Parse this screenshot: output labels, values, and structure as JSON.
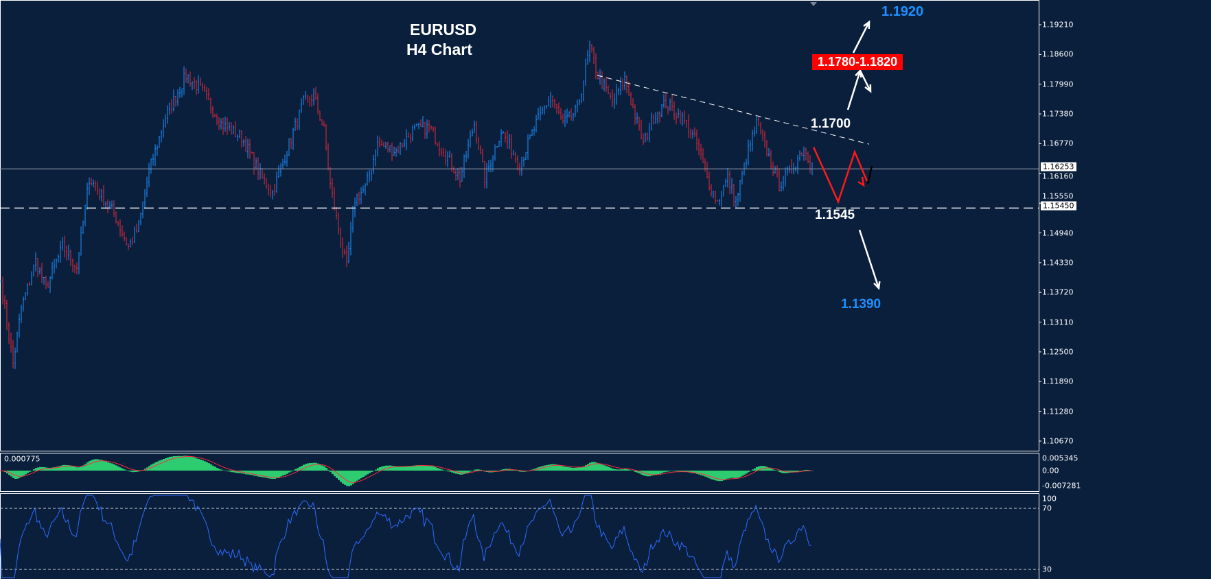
{
  "title": {
    "line1": "EURUSD",
    "line2": "H4 Chart"
  },
  "annotations": {
    "target_up": "1.1920",
    "resistance_zone": "1.1780-1.1820",
    "breakout_level": "1.1700",
    "support_level": "1.1545",
    "target_down": "1.1390"
  },
  "colors": {
    "background": "#0a1f3c",
    "bull": "#1e90ff",
    "bear": "#e8283a",
    "macd_hist": "#2ecc71",
    "macd_signal": "#ff2a3a",
    "rsi": "#2f6bff",
    "zone_bg": "#ff0000",
    "target": "#1e90ff"
  },
  "price_axis": {
    "ticks": [
      "1.19210",
      "1.18600",
      "1.17990",
      "1.17380",
      "1.16770",
      "1.16160",
      "1.15550",
      "1.14940",
      "1.14330",
      "1.13720",
      "1.13110",
      "1.12500",
      "1.11890",
      "1.11280",
      "1.10670"
    ],
    "current_price": "1.16253",
    "support_line_price": "1.15450"
  },
  "macd_panel": {
    "label": "0.000775",
    "ticks": [
      "0.005345",
      "0.00",
      "-0.007281"
    ]
  },
  "rsi_panel": {
    "ticks": [
      "100",
      "70",
      "30"
    ]
  },
  "chart_data": {
    "type": "bar",
    "symbol": "EURUSD",
    "timeframe": "H4",
    "ylim": [
      1.103,
      1.195
    ],
    "current_price": 1.16253,
    "horizontal_line": 1.1545,
    "trendline": [
      [
        290,
        1.1817
      ],
      [
        422,
        1.1676
      ]
    ],
    "projection_path": [
      [
        395,
        1.167
      ],
      [
        407,
        1.1558
      ],
      [
        415,
        1.166
      ],
      [
        421,
        1.16
      ]
    ],
    "close_path": [
      [
        0,
        1.1395
      ],
      [
        6,
        1.1226
      ],
      [
        10,
        1.1339
      ],
      [
        17,
        1.1437
      ],
      [
        22,
        1.1381
      ],
      [
        30,
        1.1465
      ],
      [
        37,
        1.1423
      ],
      [
        43,
        1.1606
      ],
      [
        50,
        1.1564
      ],
      [
        55,
        1.1535
      ],
      [
        62,
        1.1465
      ],
      [
        67,
        1.1507
      ],
      [
        72,
        1.162
      ],
      [
        80,
        1.1732
      ],
      [
        90,
        1.1817
      ],
      [
        97,
        1.1789
      ],
      [
        107,
        1.1718
      ],
      [
        117,
        1.169
      ],
      [
        127,
        1.1606
      ],
      [
        132,
        1.1578
      ],
      [
        140,
        1.1676
      ],
      [
        147,
        1.1761
      ],
      [
        152,
        1.1775
      ],
      [
        157,
        1.1704
      ],
      [
        160,
        1.1592
      ],
      [
        165,
        1.1479
      ],
      [
        168,
        1.1423
      ],
      [
        172,
        1.1564
      ],
      [
        177,
        1.1585
      ],
      [
        183,
        1.1676
      ],
      [
        192,
        1.1662
      ],
      [
        200,
        1.1704
      ],
      [
        208,
        1.1711
      ],
      [
        217,
        1.1648
      ],
      [
        223,
        1.1606
      ],
      [
        230,
        1.1718
      ],
      [
        235,
        1.1606
      ],
      [
        243,
        1.1704
      ],
      [
        252,
        1.1634
      ],
      [
        260,
        1.1718
      ],
      [
        267,
        1.1775
      ],
      [
        273,
        1.1718
      ],
      [
        280,
        1.1746
      ],
      [
        286,
        1.1873
      ],
      [
        290,
        1.1817
      ],
      [
        297,
        1.1761
      ],
      [
        303,
        1.181
      ],
      [
        312,
        1.1676
      ],
      [
        317,
        1.1732
      ],
      [
        323,
        1.1761
      ],
      [
        333,
        1.1718
      ],
      [
        338,
        1.1676
      ],
      [
        343,
        1.1606
      ],
      [
        348,
        1.1557
      ],
      [
        353,
        1.1606
      ],
      [
        357,
        1.1557
      ],
      [
        362,
        1.1648
      ],
      [
        367,
        1.1718
      ],
      [
        372,
        1.1662
      ],
      [
        378,
        1.1592
      ],
      [
        383,
        1.162
      ],
      [
        390,
        1.1669
      ],
      [
        394,
        1.16253
      ]
    ]
  }
}
